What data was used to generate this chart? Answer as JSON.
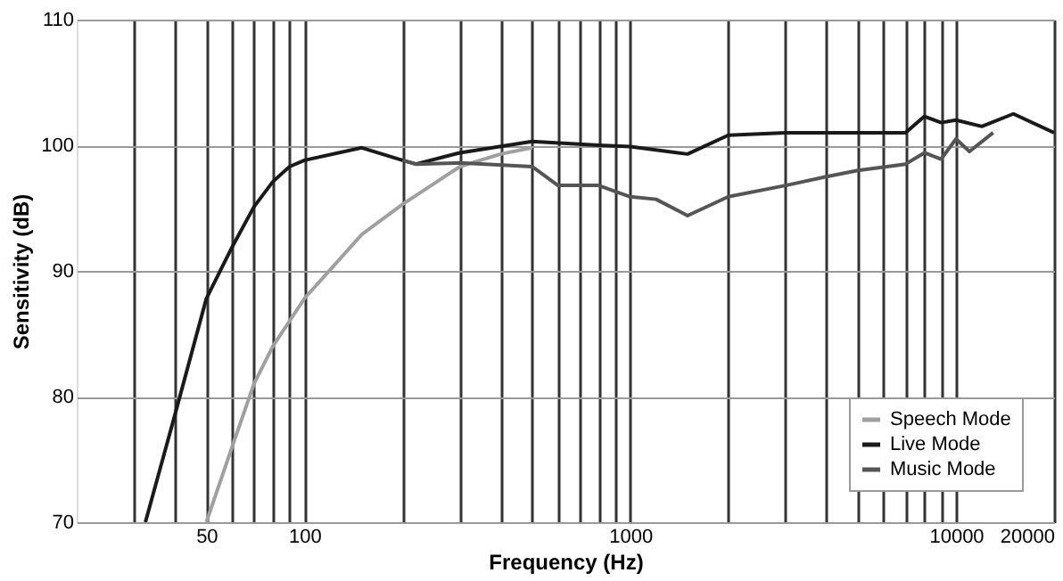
{
  "chart_data": {
    "type": "line",
    "xlabel": "Frequency (Hz)",
    "ylabel": "Sensitivity (dB)",
    "log": "x",
    "xlim": [
      20,
      20000
    ],
    "ylim": [
      70,
      110
    ],
    "xticks": [
      {
        "value": 30,
        "label": null
      },
      {
        "value": 40,
        "label": null
      },
      50,
      {
        "value": 60,
        "label": null
      },
      {
        "value": 70,
        "label": null
      },
      {
        "value": 80,
        "label": null
      },
      {
        "value": 90,
        "label": null
      },
      100,
      {
        "value": 200,
        "label": null
      },
      {
        "value": 300,
        "label": null
      },
      {
        "value": 400,
        "label": null
      },
      {
        "value": 500,
        "label": null
      },
      {
        "value": 600,
        "label": null
      },
      {
        "value": 700,
        "label": null
      },
      {
        "value": 800,
        "label": null
      },
      {
        "value": 900,
        "label": null
      },
      1000,
      {
        "value": 2000,
        "label": null
      },
      {
        "value": 3000,
        "label": null
      },
      {
        "value": 4000,
        "label": null
      },
      {
        "value": 5000,
        "label": null
      },
      {
        "value": 6000,
        "label": null
      },
      {
        "value": 7000,
        "label": null
      },
      {
        "value": 8000,
        "label": null
      },
      {
        "value": 9000,
        "label": null
      },
      10000,
      20000
    ],
    "yticks": [
      70,
      80,
      90,
      100,
      110
    ],
    "grid": true,
    "legend": "bottom right",
    "marker": "none",
    "line_style": "solid",
    "series": [
      {
        "name": "Speech Mode",
        "color": "#a0a0a0",
        "x": [
          50,
          60,
          70,
          80,
          100,
          150,
          200,
          220,
          300,
          400,
          500
        ],
        "values": [
          70,
          76,
          81,
          84,
          87.8,
          92.9,
          95.3,
          96,
          98.3,
          99.3,
          99.8
        ]
      },
      {
        "name": "Live Mode",
        "color": "#1a1a1a",
        "x": [
          32.5,
          40,
          50,
          60,
          70,
          80,
          90,
          100,
          150,
          200,
          220,
          300,
          500,
          800,
          1000,
          1500,
          2000,
          3000,
          5000,
          7000,
          8000,
          9000,
          10000,
          12000,
          15000,
          20000
        ],
        "values": [
          70,
          78.5,
          87.8,
          91.9,
          95.1,
          97.1,
          98.3,
          98.8,
          99.8,
          98.8,
          98.5,
          99.4,
          100.3,
          100,
          99.9,
          99.3,
          100.8,
          101,
          101,
          101,
          102.3,
          101.8,
          102,
          101.5,
          102.5,
          101
        ]
      },
      {
        "name": "Music Mode",
        "color": "#555555",
        "x": [
          200,
          220,
          300,
          500,
          600,
          800,
          1000,
          1200,
          1500,
          2000,
          3000,
          4000,
          5000,
          7000,
          8000,
          9000,
          10000,
          11000,
          13000
        ],
        "values": [
          98.8,
          98.5,
          98.6,
          98.3,
          96.8,
          96.8,
          95.9,
          95.7,
          94.4,
          95.9,
          96.8,
          97.5,
          98,
          98.5,
          99.4,
          98.9,
          100.5,
          99.5,
          101
        ]
      }
    ]
  }
}
